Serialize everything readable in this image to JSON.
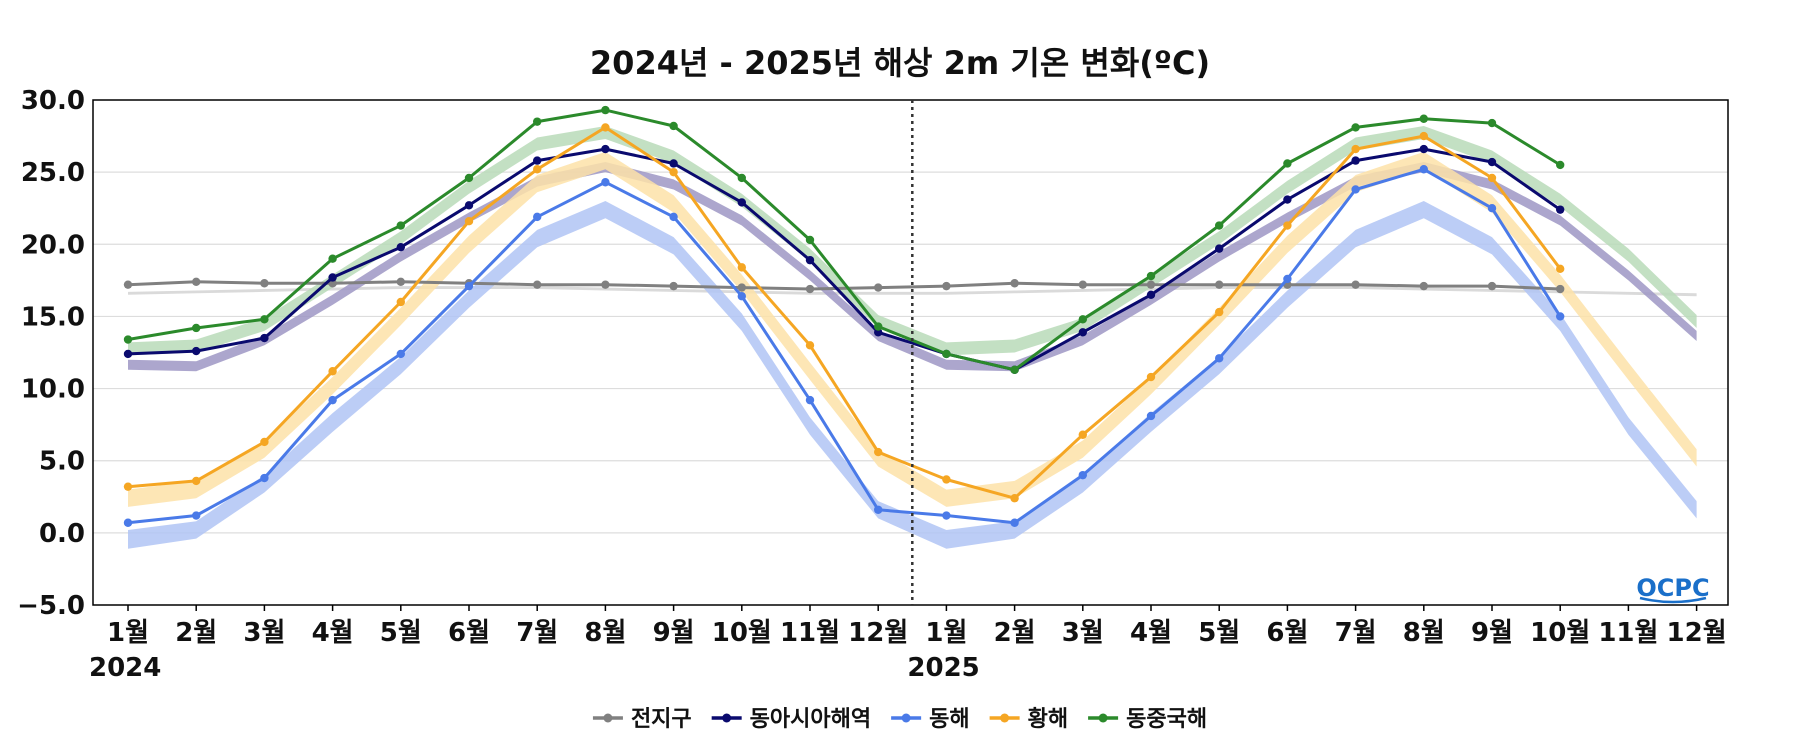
{
  "chart_data": {
    "type": "line",
    "title": "2024년 - 2025년 해상 2m 기온 변화(ºC)",
    "categories": [
      "1월",
      "2월",
      "3월",
      "4월",
      "5월",
      "6월",
      "7월",
      "8월",
      "9월",
      "10월",
      "11월",
      "12월",
      "1월",
      "2월",
      "3월",
      "4월",
      "5월",
      "6월",
      "7월",
      "8월",
      "9월",
      "10월",
      "11월",
      "12월"
    ],
    "years": [
      {
        "label": "2024",
        "index": 0
      },
      {
        "label": "2025",
        "index": 12
      }
    ],
    "year_divider_after_index": 11,
    "ylim": [
      -5,
      30
    ],
    "yticks": [
      30.0,
      25.0,
      20.0,
      15.0,
      10.0,
      5.0,
      0.0,
      -5.0
    ],
    "grid": "horizontal",
    "legend_position": "bottom-center",
    "series": [
      {
        "name": "전지구",
        "color": "#808080",
        "values": [
          17.2,
          17.4,
          17.3,
          17.3,
          17.4,
          17.3,
          17.2,
          17.2,
          17.1,
          17.0,
          16.9,
          17.0,
          17.1,
          17.3,
          17.2,
          17.2,
          17.2,
          17.2,
          17.2,
          17.1,
          17.1,
          16.9,
          null,
          null
        ]
      },
      {
        "name": "동아시아해역",
        "color": "#0a0a6e",
        "values": [
          12.4,
          12.6,
          13.5,
          17.7,
          19.8,
          22.7,
          25.8,
          26.6,
          25.6,
          22.9,
          18.9,
          13.9,
          12.4,
          11.3,
          13.9,
          16.5,
          19.7,
          23.1,
          25.8,
          26.6,
          25.7,
          22.4,
          null,
          null
        ]
      },
      {
        "name": "동해",
        "color": "#4a7ae8",
        "values": [
          0.7,
          1.2,
          3.8,
          9.2,
          12.4,
          17.1,
          21.9,
          24.3,
          21.9,
          16.4,
          9.2,
          1.6,
          1.2,
          0.7,
          4.0,
          8.1,
          12.1,
          17.6,
          23.8,
          25.2,
          22.5,
          15.0,
          null,
          null
        ]
      },
      {
        "name": "황해",
        "color": "#f5a623",
        "values": [
          3.2,
          3.6,
          6.3,
          11.2,
          16.0,
          21.6,
          25.2,
          28.1,
          25.0,
          18.4,
          13.0,
          5.6,
          3.7,
          2.4,
          6.8,
          10.8,
          15.3,
          21.3,
          26.6,
          27.5,
          24.6,
          18.3,
          null,
          null
        ]
      },
      {
        "name": "동중국해",
        "color": "#2b8a2b",
        "values": [
          13.4,
          14.2,
          14.8,
          19.0,
          21.3,
          24.6,
          28.5,
          29.3,
          28.2,
          24.6,
          20.3,
          14.3,
          12.4,
          11.3,
          14.8,
          17.8,
          21.3,
          25.6,
          28.1,
          28.7,
          28.4,
          25.5,
          null,
          null
        ]
      }
    ],
    "climatology_bands": [
      {
        "color": "#d3d3d3",
        "lower": [
          16.5,
          16.6,
          16.7,
          16.8,
          16.9,
          16.9,
          16.9,
          16.8,
          16.7,
          16.6,
          16.5,
          16.5,
          16.5,
          16.6,
          16.7,
          16.8,
          16.9,
          16.9,
          16.9,
          16.8,
          16.7,
          16.6,
          16.5,
          16.4
        ],
        "upper": [
          16.7,
          16.8,
          16.9,
          17.0,
          17.1,
          17.1,
          17.1,
          17.0,
          16.9,
          16.8,
          16.7,
          16.7,
          16.7,
          16.8,
          16.9,
          17.0,
          17.1,
          17.1,
          17.1,
          17.0,
          16.9,
          16.8,
          16.7,
          16.6
        ]
      },
      {
        "color": "#9e96c4",
        "lower": [
          11.3,
          11.2,
          13.0,
          15.8,
          18.8,
          21.5,
          24.0,
          25.0,
          23.8,
          21.3,
          17.5,
          13.3,
          11.3,
          11.2,
          13.0,
          15.8,
          18.8,
          21.5,
          24.0,
          25.0,
          23.8,
          21.3,
          17.5,
          13.3
        ],
        "upper": [
          12.0,
          11.9,
          13.7,
          16.5,
          19.5,
          22.2,
          24.7,
          25.7,
          24.5,
          22.0,
          18.2,
          14.0,
          12.0,
          11.9,
          13.7,
          16.5,
          19.5,
          22.2,
          24.7,
          25.7,
          24.5,
          22.0,
          18.2,
          14.0
        ]
      },
      {
        "color": "#b0c4f5",
        "lower": [
          -1.1,
          -0.4,
          2.8,
          7.0,
          11.0,
          15.6,
          19.8,
          21.8,
          19.3,
          14.0,
          6.8,
          1.0,
          -1.1,
          -0.4,
          2.8,
          7.0,
          11.0,
          15.6,
          19.8,
          21.8,
          19.3,
          14.0,
          6.8,
          1.0
        ],
        "upper": [
          0.2,
          0.8,
          4.0,
          8.3,
          12.2,
          16.8,
          21.0,
          23.0,
          20.5,
          15.2,
          8.0,
          2.2,
          0.2,
          0.8,
          4.0,
          8.3,
          12.2,
          16.8,
          21.0,
          23.0,
          20.5,
          15.2,
          8.0,
          2.2
        ]
      },
      {
        "color": "#fde2a8",
        "lower": [
          1.8,
          2.4,
          5.2,
          9.6,
          14.4,
          19.4,
          23.6,
          25.2,
          22.2,
          16.7,
          10.6,
          4.6,
          1.8,
          2.4,
          5.2,
          9.6,
          14.4,
          19.4,
          23.6,
          25.2,
          22.2,
          16.7,
          10.6,
          4.6
        ],
        "upper": [
          3.0,
          3.6,
          6.4,
          10.8,
          15.6,
          20.6,
          24.8,
          26.4,
          23.4,
          17.9,
          11.8,
          5.8,
          3.0,
          3.6,
          6.4,
          10.8,
          15.6,
          20.6,
          24.8,
          26.4,
          23.4,
          17.9,
          11.8,
          5.8
        ]
      },
      {
        "color": "#b8dbb8",
        "lower": [
          12.3,
          12.5,
          14.0,
          17.0,
          20.0,
          23.5,
          26.5,
          27.3,
          25.6,
          22.6,
          18.8,
          14.2,
          12.3,
          12.5,
          14.0,
          17.0,
          20.0,
          23.5,
          26.5,
          27.3,
          25.6,
          22.6,
          18.8,
          14.2
        ],
        "upper": [
          13.2,
          13.4,
          14.9,
          17.9,
          20.9,
          24.4,
          27.4,
          28.2,
          26.5,
          23.5,
          19.7,
          15.1,
          13.2,
          13.4,
          14.9,
          17.9,
          20.9,
          24.4,
          27.4,
          28.2,
          26.5,
          23.5,
          19.7,
          15.1
        ]
      }
    ]
  },
  "logo": {
    "text": "OCPC",
    "color": "#1a6fc9"
  }
}
